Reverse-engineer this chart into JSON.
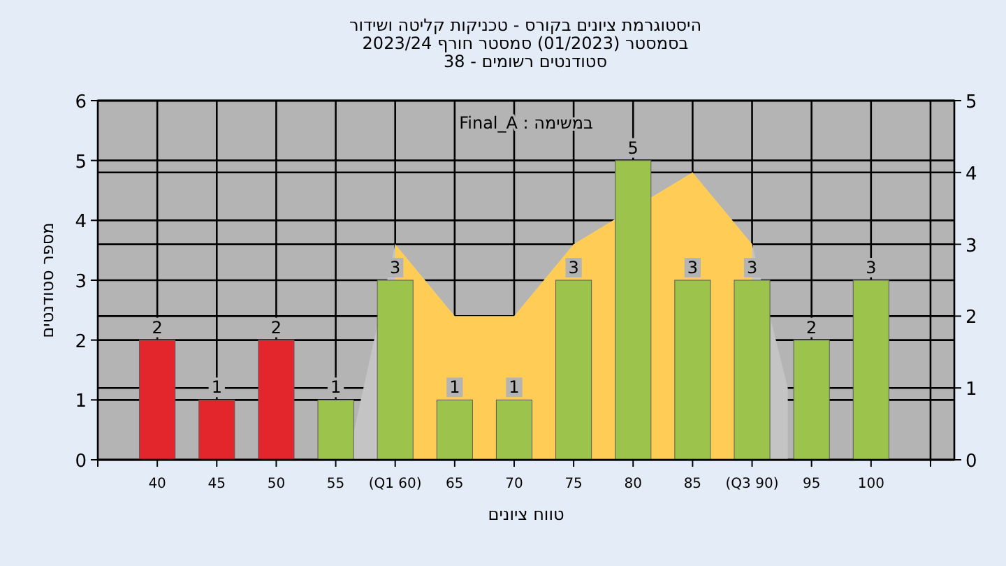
{
  "chart_data": {
    "type": "bar",
    "title": "היסטוגרמת ציונים בקורס - טכניקות קליטה ושידור",
    "subtitle": "בסמסטר  (01/2023)  סמסטר חורף 2023/24\nסטודנטים רשומים - 38",
    "xlabel": "טווח ציונים",
    "ylabel": "מספר סטודנטים",
    "annotations": [
      "במשימה : Final_A"
    ],
    "xlim": [
      35,
      107
    ],
    "xticks": [
      {
        "value": 35,
        "label": null
      },
      40,
      45,
      50,
      55,
      {
        "value": 60,
        "label": "(Q1 60)"
      },
      65,
      70,
      75,
      80,
      85,
      {
        "value": 90,
        "label": "(Q3 90)"
      },
      95,
      100,
      {
        "value": 105,
        "label": null
      }
    ],
    "ylim": [
      0,
      6
    ],
    "yticks": [
      0,
      1,
      2,
      3,
      4,
      5,
      6
    ],
    "y2lim": [
      0,
      5
    ],
    "y2ticks": [
      0,
      1,
      2,
      3,
      4,
      5
    ],
    "grid": true,
    "series": [
      {
        "type": "area",
        "axis": "y2",
        "color": "#c4c4c4",
        "x": [
          56,
          60,
          65,
          70,
          75,
          80,
          85,
          90,
          93
        ],
        "values": [
          0,
          3,
          2,
          2,
          3,
          null,
          4,
          3,
          1
        ]
      },
      {
        "type": "area",
        "axis": "y2",
        "color": "#ffcc55",
        "x": [
          60,
          65,
          70,
          75,
          80,
          85,
          90
        ],
        "values": [
          3,
          2,
          2,
          3,
          null,
          4,
          3
        ]
      },
      {
        "x": [
          40,
          45,
          50,
          55,
          60,
          65,
          70,
          75,
          80,
          85,
          90,
          95,
          100
        ],
        "values": [
          2,
          1,
          2,
          1,
          3,
          1,
          1,
          3,
          5,
          3,
          3,
          2,
          3
        ],
        "value_labels": [
          "2",
          "1",
          "2",
          "1",
          "3",
          "1",
          "1",
          "3",
          "5",
          "3",
          "3",
          "2",
          "3"
        ],
        "colors": [
          "#e3262b",
          "#e3262b",
          "#e3262b",
          "#9cc44c",
          "#9cc44c",
          "#9cc44c",
          "#9cc44c",
          "#9cc44c",
          "#9cc44c",
          "#9cc44c",
          "#9cc44c",
          "#9cc44c",
          "#9cc44c"
        ]
      }
    ]
  }
}
